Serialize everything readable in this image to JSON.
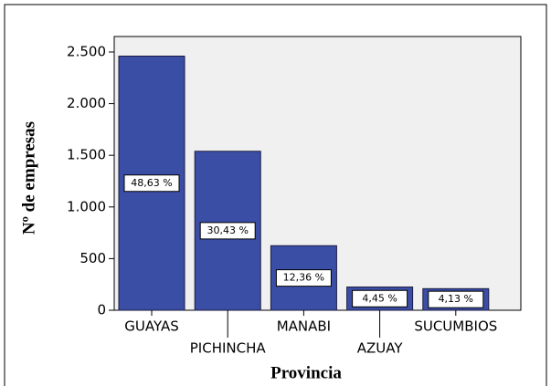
{
  "chart_data": {
    "type": "bar",
    "x_label": "Provincia",
    "y_label": "Nº de empresas",
    "categories": [
      "GUAYAS",
      "PICHINCHA",
      "MANABI",
      "AZUAY",
      "SUCUMBIOS"
    ],
    "values": [
      2460,
      1539,
      625,
      225,
      209
    ],
    "percentages": [
      48.63,
      30.43,
      12.36,
      4.45,
      4.13
    ],
    "percentage_labels": [
      "48,63 %",
      "30,43 %",
      "12,36 %",
      "4,45 %",
      "4,13 %"
    ],
    "color": "#3b4ea6",
    "ylim": [
      0,
      2650
    ],
    "yticks": [
      0,
      500,
      {
        "value": 1000,
        "label": "1.000"
      },
      {
        "value": 1500,
        "label": "1.500"
      },
      {
        "value": 2000,
        "label": "2.000"
      },
      {
        "value": 2500,
        "label": "2.500"
      }
    ]
  }
}
